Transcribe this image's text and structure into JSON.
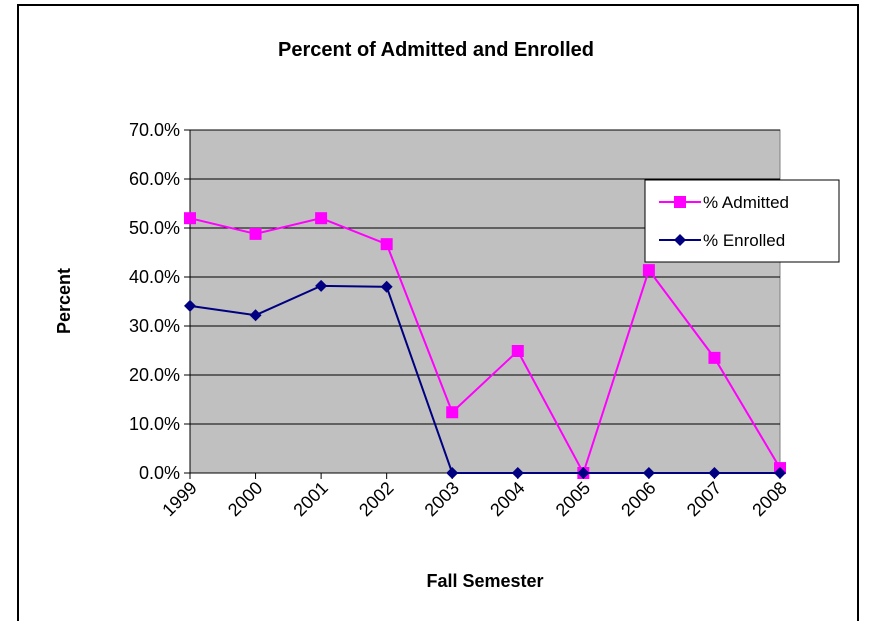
{
  "chart_data": {
    "type": "line",
    "title": "Percent of Admitted and Enrolled",
    "x_label": "Fall Semester",
    "y_label": "Percent",
    "categories": [
      "1999",
      "2000",
      "2001",
      "2002",
      "2003",
      "2004",
      "2005",
      "2006",
      "2007",
      "2008"
    ],
    "series": [
      {
        "name": "% Admitted",
        "color": "#ff00ff",
        "marker": "square",
        "values": [
          52.0,
          48.8,
          52.0,
          46.7,
          12.4,
          24.9,
          0,
          41.4,
          23.5,
          1.0
        ]
      },
      {
        "name": "% Enrolled",
        "color": "#000080",
        "marker": "diamond",
        "values": [
          34.1,
          32.2,
          38.2,
          38.0,
          0,
          0,
          0,
          0,
          0,
          0
        ]
      }
    ],
    "ylim": [
      0,
      70
    ],
    "yticks": [
      {
        "value": 0,
        "label": "0.0%"
      },
      {
        "value": 10,
        "label": "10.0%"
      },
      {
        "value": 20,
        "label": "20.0%"
      },
      {
        "value": 30,
        "label": "30.0%"
      },
      {
        "value": 40,
        "label": "40.0%"
      },
      {
        "value": 50,
        "label": "50.0%"
      },
      {
        "value": 60,
        "label": "60.0%"
      },
      {
        "value": 70,
        "label": "70.0%"
      }
    ],
    "grid": true,
    "legend": "right"
  }
}
